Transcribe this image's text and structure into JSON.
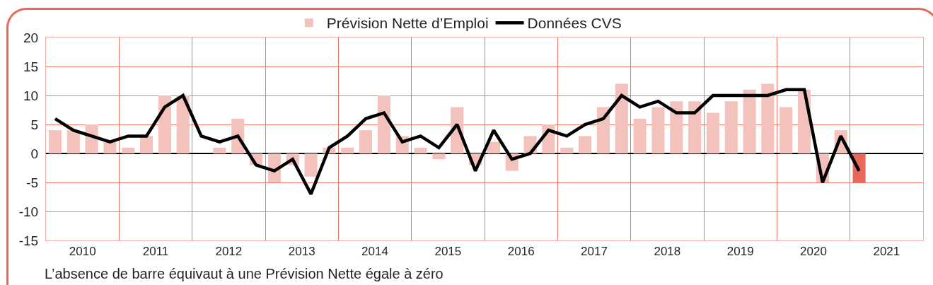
{
  "chart_data": {
    "type": "bar",
    "x": [
      2010.125,
      2010.375,
      2010.625,
      2010.875,
      2011.125,
      2011.375,
      2011.625,
      2011.875,
      2012.125,
      2012.375,
      2012.625,
      2012.875,
      2013.125,
      2013.375,
      2013.625,
      2013.875,
      2014.125,
      2014.375,
      2014.625,
      2014.875,
      2015.125,
      2015.375,
      2015.625,
      2015.875,
      2016.125,
      2016.375,
      2016.625,
      2016.875,
      2017.125,
      2017.375,
      2017.625,
      2017.875,
      2018.125,
      2018.375,
      2018.625,
      2018.875,
      2019.125,
      2019.375,
      2019.625,
      2019.875,
      2020.125,
      2020.375,
      2020.625,
      2020.875,
      2021.125
    ],
    "series": [
      {
        "name": "Prévision Nette d’Emploi",
        "colors": [
          "#f4c2bd",
          "#f4c2bd",
          "#f4c2bd",
          "#f4c2bd",
          "#f4c2bd",
          "#f4c2bd",
          "#f4c2bd",
          "#f4c2bd",
          "#f4c2bd",
          "#f4c2bd",
          "#f4c2bd",
          "#f4c2bd",
          "#f4c2bd",
          "#f4c2bd",
          "#f4c2bd",
          "#f4c2bd",
          "#f4c2bd",
          "#f4c2bd",
          "#f4c2bd",
          "#f4c2bd",
          "#f4c2bd",
          "#f4c2bd",
          "#f4c2bd",
          "#f4c2bd",
          "#f4c2bd",
          "#f4c2bd",
          "#f4c2bd",
          "#f4c2bd",
          "#f4c2bd",
          "#f4c2bd",
          "#f4c2bd",
          "#f4c2bd",
          "#f4c2bd",
          "#f4c2bd",
          "#f4c2bd",
          "#f4c2bd",
          "#f4c2bd",
          "#f4c2bd",
          "#f4c2bd",
          "#f4c2bd",
          "#f4c2bd",
          "#f4c2bd",
          "#f4c2bd",
          "#f4c2bd",
          "#e8685a"
        ],
        "values": [
          4,
          4,
          5,
          2,
          1,
          3,
          10,
          10,
          0,
          1,
          6,
          -2,
          -5,
          -2,
          -4,
          1,
          1,
          4,
          10,
          3,
          1,
          -1,
          8,
          -2,
          2,
          -3,
          3,
          5,
          1,
          3,
          8,
          12,
          6,
          8,
          9,
          9,
          7,
          9,
          11,
          12,
          8,
          11,
          -5,
          4,
          -5
        ]
      },
      {
        "name": "Données CVS",
        "type": "line",
        "color": "#000000",
        "values": [
          6,
          4,
          3,
          2,
          3,
          3,
          8,
          10,
          3,
          2,
          3,
          -2,
          -3,
          -1,
          -7,
          1,
          3,
          6,
          7,
          2,
          3,
          1,
          5,
          -3,
          4,
          -1,
          0,
          4,
          3,
          5,
          6,
          10,
          8,
          9,
          7,
          7,
          10,
          10,
          10,
          10,
          11,
          11,
          -5,
          3,
          -3
        ]
      }
    ],
    "xlim": [
      2010,
      2022
    ],
    "xticks": [
      {
        "value": 2011,
        "label": null
      },
      {
        "value": 2012,
        "label": null
      },
      {
        "value": 2013,
        "label": null
      },
      {
        "value": 2014,
        "label": null
      },
      {
        "value": 2015,
        "label": null
      },
      {
        "value": 2016,
        "label": null
      },
      {
        "value": 2017,
        "label": null
      },
      {
        "value": 2018,
        "label": null
      },
      {
        "value": 2019,
        "label": null
      },
      {
        "value": 2020,
        "label": null
      },
      {
        "value": 2021,
        "label": null
      },
      {
        "value": 2010.5,
        "label": "2010"
      },
      {
        "value": 2011.5,
        "label": "2011"
      },
      {
        "value": 2012.5,
        "label": "2012"
      },
      {
        "value": 2013.5,
        "label": "2013"
      },
      {
        "value": 2014.5,
        "label": "2014"
      },
      {
        "value": 2015.5,
        "label": "2015"
      },
      {
        "value": 2016.5,
        "label": "2016"
      },
      {
        "value": 2017.5,
        "label": "2017"
      },
      {
        "value": 2018.5,
        "label": "2018"
      },
      {
        "value": 2019.5,
        "label": "2019"
      },
      {
        "value": 2020.5,
        "label": "2020"
      },
      {
        "value": 2021.5,
        "label": "2021"
      }
    ],
    "ylim": [
      -15,
      20
    ],
    "yticks": [
      -15,
      -10,
      -5,
      0,
      5,
      10,
      15,
      20
    ],
    "grid": true,
    "legend": "top",
    "annotations": [
      "L’absence de barre équivaut à une Prévision Nette égale à zéro"
    ]
  }
}
